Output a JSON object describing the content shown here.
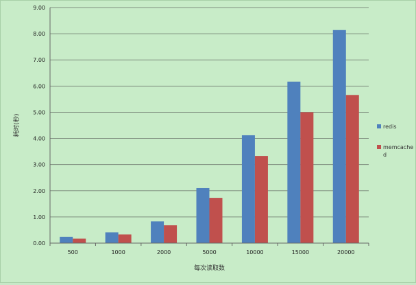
{
  "chart_data": {
    "type": "bar",
    "title": "",
    "xlabel": "每次读取数",
    "ylabel": "耗时(秒)",
    "categories": [
      "500",
      "1000",
      "2000",
      "5000",
      "10000",
      "15000",
      "20000"
    ],
    "series": [
      {
        "name": "redis",
        "color": "#4f81bd",
        "values": [
          0.24,
          0.41,
          0.83,
          2.1,
          4.12,
          6.17,
          8.14
        ]
      },
      {
        "name": "memcached",
        "color": "#c0504d",
        "values": [
          0.17,
          0.33,
          0.68,
          1.73,
          3.33,
          5.0,
          5.66
        ]
      }
    ],
    "yticks": [
      "0.00",
      "1.00",
      "2.00",
      "3.00",
      "4.00",
      "5.00",
      "6.00",
      "7.00",
      "8.00",
      "9.00"
    ],
    "ylim": [
      0,
      9
    ],
    "grid": true,
    "legend_position": "right"
  }
}
